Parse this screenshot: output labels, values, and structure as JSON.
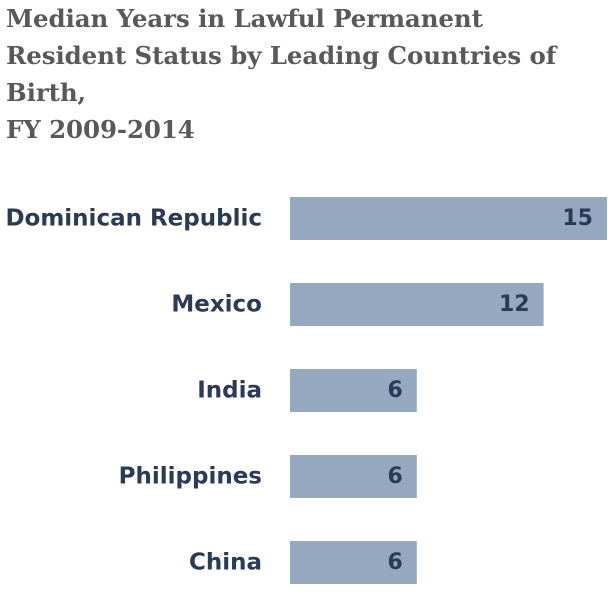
{
  "chart_data": {
    "type": "bar",
    "orientation": "horizontal",
    "title_lines": [
      "Median Years in Lawful Permanent",
      "Resident Status by Leading Countries of",
      "Birth,",
      "FY 2009-2014"
    ],
    "categories": [
      "Dominican Republic",
      "Mexico",
      "India",
      "Philippines",
      "China"
    ],
    "values": [
      15,
      12,
      6,
      6,
      6
    ],
    "value_labels": [
      "15",
      "12",
      "6",
      "6",
      "6"
    ],
    "xlim": [
      0,
      15
    ],
    "grid": false,
    "legend": "none",
    "bar_color": "#94a9c0",
    "label_color": "#2b3a55",
    "title_color": "#595959"
  }
}
